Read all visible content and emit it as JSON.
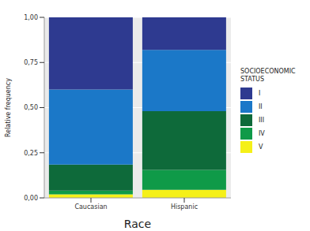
{
  "chart_data": {
    "type": "bar",
    "stacked": true,
    "x_label": "Race",
    "y_label": "Relative frequency",
    "legend_title": "SOCIOECONOMIC STATUS",
    "legend": "right",
    "grid": true,
    "categories": [
      "Caucasian",
      "Hispanic"
    ],
    "ylim": [
      0,
      1
    ],
    "yticks": [
      {
        "value": 0,
        "label": "0,00"
      },
      {
        "value": 0.25,
        "label": "0,25"
      },
      {
        "value": 0.5,
        "label": "0,50"
      },
      {
        "value": 0.75,
        "label": "0,75"
      },
      {
        "value": 1,
        "label": "1,00"
      }
    ],
    "series": [
      {
        "name": "I",
        "color": "#2e3a90",
        "values": [
          0.4,
          0.18
        ]
      },
      {
        "name": "II",
        "color": "#1b78c8",
        "values": [
          0.415,
          0.34
        ]
      },
      {
        "name": "III",
        "color": "#0e6a3a",
        "values": [
          0.145,
          0.325
        ]
      },
      {
        "name": "IV",
        "color": "#0f9a48",
        "values": [
          0.02,
          0.11
        ]
      },
      {
        "name": "V",
        "color": "#f5f018",
        "values": [
          0.02,
          0.045
        ]
      }
    ]
  }
}
